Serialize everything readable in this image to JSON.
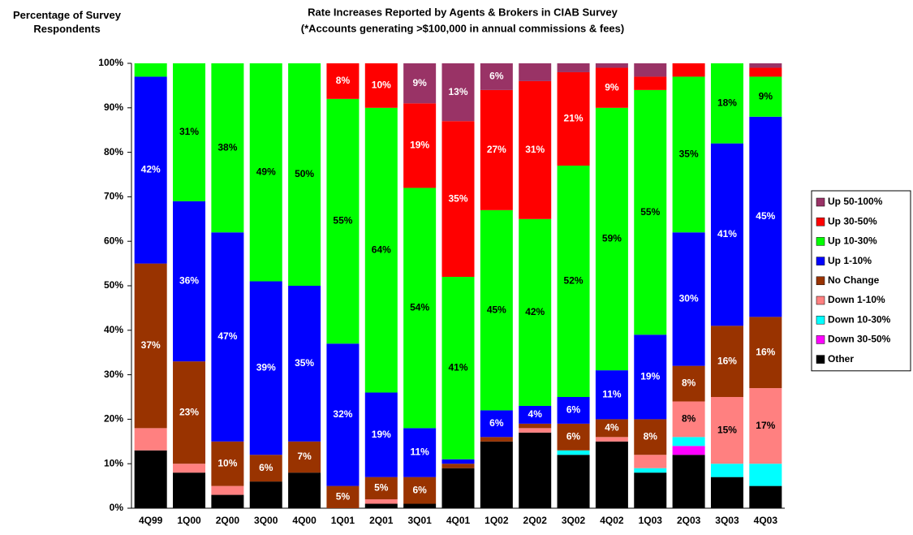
{
  "chart_data": {
    "type": "stacked_bar",
    "title": "Rate Increases Reported by Agents & Brokers in CIAB Survey",
    "subtitle": "(*Accounts generating >$100,000 in annual commissions & fees)",
    "y_label": "Percentage of Survey Respondents",
    "categories": [
      "4Q99",
      "1Q00",
      "2Q00",
      "3Q00",
      "4Q00",
      "1Q01",
      "2Q01",
      "3Q01",
      "4Q01",
      "1Q02",
      "2Q02",
      "3Q02",
      "4Q02",
      "1Q03",
      "2Q03",
      "3Q03",
      "4Q03"
    ],
    "ylim": [
      0,
      100
    ],
    "yticks": [
      {
        "value": 0,
        "label": "0%"
      },
      {
        "value": 10,
        "label": "10%"
      },
      {
        "value": 20,
        "label": "20%"
      },
      {
        "value": 30,
        "label": "30%"
      },
      {
        "value": 40,
        "label": "40%"
      },
      {
        "value": 50,
        "label": "50%"
      },
      {
        "value": 60,
        "label": "60%"
      },
      {
        "value": 70,
        "label": "70%"
      },
      {
        "value": 80,
        "label": "80%"
      },
      {
        "value": 90,
        "label": "90%"
      },
      {
        "value": 100,
        "label": "100%"
      }
    ],
    "legend": "right",
    "series": [
      {
        "name": "Other",
        "color": "#000000",
        "values": [
          13,
          8,
          3,
          6,
          8,
          0,
          1,
          1,
          9,
          15,
          17,
          12,
          15,
          8,
          12,
          7,
          5
        ],
        "value_labels": [
          null,
          null,
          null,
          null,
          null,
          null,
          null,
          null,
          null,
          null,
          null,
          null,
          null,
          null,
          null,
          null,
          null
        ]
      },
      {
        "name": "Down 30-50%",
        "color": "#ff00ff",
        "values": [
          0,
          0,
          0,
          0,
          0,
          0,
          0,
          0,
          0,
          0,
          0,
          0,
          0,
          0,
          2,
          0,
          0
        ],
        "value_labels": [
          null,
          null,
          null,
          null,
          null,
          null,
          null,
          null,
          null,
          null,
          null,
          null,
          null,
          null,
          null,
          null,
          null
        ]
      },
      {
        "name": "Down 10-30%",
        "color": "#00ffff",
        "values": [
          0,
          0,
          0,
          0,
          0,
          0,
          0,
          0,
          0,
          0,
          0,
          1,
          0,
          1,
          2,
          3,
          5
        ],
        "value_labels": [
          null,
          null,
          null,
          null,
          null,
          null,
          null,
          null,
          null,
          null,
          null,
          null,
          null,
          null,
          null,
          null,
          null
        ]
      },
      {
        "name": "Down 1-10%",
        "color": "#ff8080",
        "values": [
          5,
          2,
          2,
          0,
          0,
          0,
          1,
          0,
          0,
          0,
          1,
          0,
          1,
          3,
          8,
          15,
          17
        ],
        "value_labels": [
          null,
          null,
          null,
          null,
          null,
          null,
          null,
          null,
          null,
          null,
          null,
          null,
          null,
          null,
          "8%",
          "15%",
          "17%"
        ]
      },
      {
        "name": "No Change",
        "color": "#993300",
        "values": [
          37,
          23,
          10,
          6,
          7,
          5,
          5,
          6,
          1,
          1,
          1,
          6,
          4,
          8,
          8,
          16,
          16
        ],
        "value_labels": [
          "37%",
          "23%",
          "10%",
          "6%",
          "7%",
          "5%",
          "5%",
          "6%",
          null,
          null,
          null,
          "6%",
          "4%",
          "8%",
          "8%",
          "16%",
          "16%"
        ]
      },
      {
        "name": "Up 1-10%",
        "color": "#0000ff",
        "values": [
          42,
          36,
          47,
          39,
          35,
          32,
          19,
          11,
          1,
          6,
          4,
          6,
          11,
          19,
          30,
          41,
          45
        ],
        "value_labels": [
          "42%",
          "36%",
          "47%",
          "39%",
          "35%",
          "32%",
          "19%",
          "11%",
          null,
          "6%",
          "4%",
          "6%",
          "11%",
          "19%",
          "30%",
          "41%",
          "45%"
        ]
      },
      {
        "name": "Up 10-30%",
        "color": "#00ff00",
        "values": [
          3,
          31,
          38,
          49,
          50,
          55,
          64,
          54,
          41,
          45,
          42,
          52,
          59,
          55,
          35,
          18,
          9
        ],
        "value_labels": [
          null,
          "31%",
          "38%",
          "49%",
          "50%",
          "55%",
          "64%",
          "54%",
          "41%",
          "45%",
          "42%",
          "52%",
          "59%",
          "55%",
          "35%",
          "18%",
          "9%"
        ]
      },
      {
        "name": "Up 30-50%",
        "color": "#ff0000",
        "values": [
          0,
          0,
          0,
          0,
          0,
          8,
          10,
          19,
          35,
          27,
          31,
          21,
          9,
          3,
          3,
          0,
          2
        ],
        "value_labels": [
          null,
          null,
          null,
          null,
          null,
          "8%",
          "10%",
          "19%",
          "35%",
          "27%",
          "31%",
          "21%",
          "9%",
          null,
          null,
          null,
          null
        ]
      },
      {
        "name": "Up 50-100%",
        "color": "#993366",
        "values": [
          0,
          0,
          0,
          0,
          0,
          0,
          0,
          9,
          13,
          6,
          4,
          2,
          1,
          3,
          0,
          0,
          1
        ],
        "value_labels": [
          null,
          null,
          null,
          null,
          null,
          null,
          null,
          "9%",
          "13%",
          "6%",
          null,
          null,
          null,
          null,
          null,
          null,
          null
        ]
      }
    ]
  }
}
